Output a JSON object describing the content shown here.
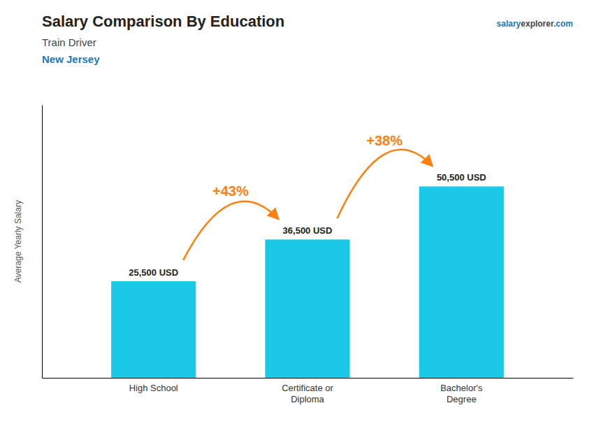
{
  "chart_data": {
    "type": "bar",
    "title": "Salary Comparison By Education",
    "subtitle": [
      "Train Driver",
      "New Jersey"
    ],
    "credit": [
      "salary",
      "explorer",
      ".com"
    ],
    "ylabel": "Average Yearly Salary",
    "categories": [
      "High School",
      "Certificate or\nDiploma",
      "Bachelor's\nDegree"
    ],
    "values": [
      25500,
      36500,
      50500
    ],
    "value_labels": [
      "25,500 USD",
      "36,500 USD",
      "50,500 USD"
    ],
    "data_labels": true,
    "annotations": [
      "+43%",
      "+38%"
    ],
    "color": "#1ac8e8",
    "ylim": [
      0,
      72000
    ],
    "yticks": [],
    "tick_labels": "x",
    "grid": false
  }
}
